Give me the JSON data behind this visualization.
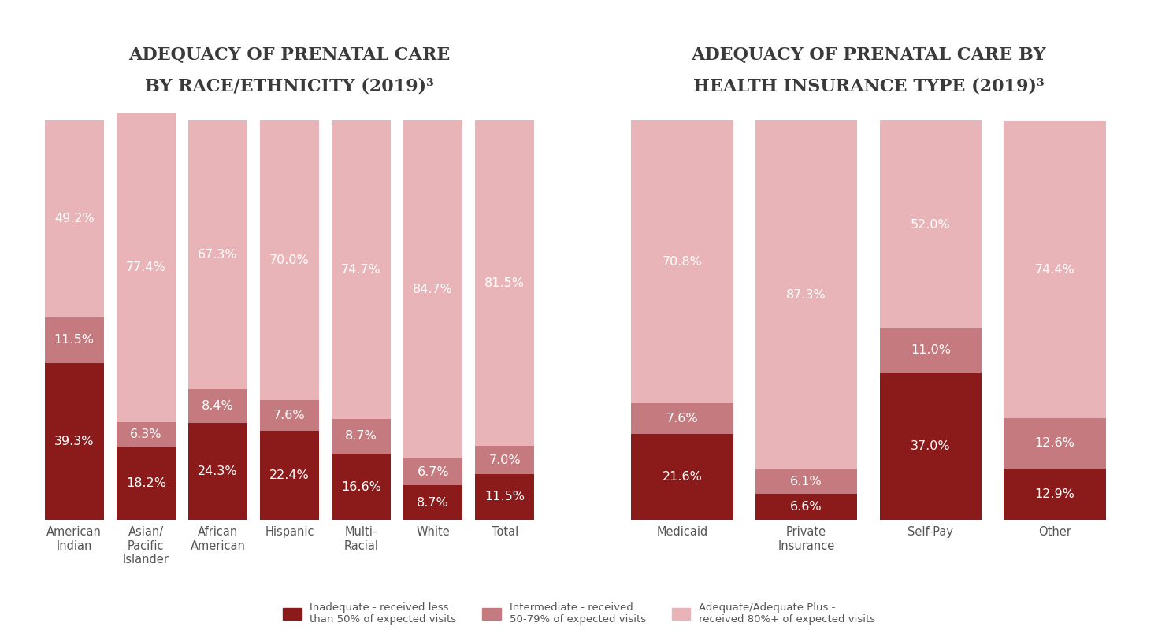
{
  "chart1_title_line1": "Adequacy of Prenatal Care",
  "chart1_title_line2": "by Race/Ethnicity (2019)³",
  "chart2_title_line1": "Adequacy of Prenatal Care by",
  "chart2_title_line2": "Health Insurance Type (2019)³",
  "chart1_categories": [
    "American\nIndian",
    "Asian/\nPacific\nIslander",
    "African\nAmerican",
    "Hispanic",
    "Multi-\nRacial",
    "White",
    "Total"
  ],
  "chart2_categories": [
    "Medicaid",
    "Private\nInsurance",
    "Self-Pay",
    "Other"
  ],
  "chart1_inadequate": [
    39.3,
    18.2,
    24.3,
    22.4,
    16.6,
    8.7,
    11.5
  ],
  "chart1_intermediate": [
    11.5,
    6.3,
    8.4,
    7.6,
    8.7,
    6.7,
    7.0
  ],
  "chart1_adequate": [
    49.2,
    77.4,
    67.3,
    70.0,
    74.7,
    84.7,
    81.5
  ],
  "chart2_inadequate": [
    21.6,
    6.6,
    37.0,
    12.9
  ],
  "chart2_intermediate": [
    7.6,
    6.1,
    11.0,
    12.6
  ],
  "chart2_adequate": [
    70.8,
    87.3,
    52.0,
    74.4
  ],
  "color_inadequate": "#8B1A1A",
  "color_intermediate": "#C47A7E",
  "color_adequate": "#E8B4B8",
  "bg_color": "#FFFFFF",
  "text_color_dark": "#555555",
  "legend_inadequate": "Inadequate - received less\nthan 50% of expected visits",
  "legend_intermediate": "Intermediate - received\n50-79% of expected visits",
  "legend_adequate": "Adequate/Adequate Plus -\nreceived 80%+ of expected visits",
  "bar_width": 0.82,
  "label_fontsize": 11.5,
  "title_fontsize": 16
}
